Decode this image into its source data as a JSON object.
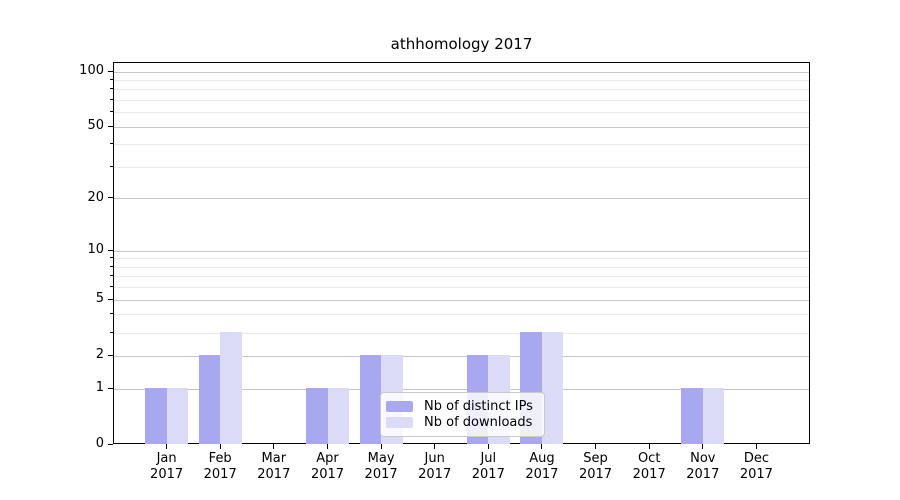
{
  "title": "athhomology 2017",
  "chart_data": {
    "type": "bar",
    "title": "athhomology 2017",
    "year": "2017",
    "months": [
      "Jan",
      "Feb",
      "Mar",
      "Apr",
      "May",
      "Jun",
      "Jul",
      "Aug",
      "Sep",
      "Oct",
      "Nov",
      "Dec"
    ],
    "categories": [
      "Jan 2017",
      "Feb 2017",
      "Mar 2017",
      "Apr 2017",
      "May 2017",
      "Jun 2017",
      "Jul 2017",
      "Aug 2017",
      "Sep 2017",
      "Oct 2017",
      "Nov 2017",
      "Dec 2017"
    ],
    "series": [
      {
        "name": "Nb of distinct IPs",
        "color": "#a8a8f0",
        "values": [
          1,
          2,
          0,
          1,
          2,
          0,
          2,
          3,
          0,
          0,
          1,
          0
        ]
      },
      {
        "name": "Nb of downloads",
        "color": "#dbdbf8",
        "values": [
          1,
          3,
          0,
          1,
          2,
          0,
          2,
          3,
          0,
          0,
          1,
          0
        ]
      }
    ],
    "yscale": "log1p",
    "ylim": [
      0,
      112
    ],
    "y_major_ticks": [
      0,
      1,
      2,
      5,
      10,
      20,
      50,
      100
    ],
    "y_minor_ticks": [
      3,
      4,
      6,
      7,
      8,
      9,
      30,
      40,
      60,
      70,
      80,
      90
    ],
    "grid": "horizontal-only",
    "legend_position": "lower center"
  },
  "colors": {
    "background": "#ffffff",
    "bar_distinct_ips": "#a8a8f0",
    "bar_downloads": "#dbdbf8",
    "grid_major": "#c6c6c6",
    "grid_minor": "#e9e9e9",
    "axis": "#000000",
    "legend_border": "#c9c9c9"
  }
}
